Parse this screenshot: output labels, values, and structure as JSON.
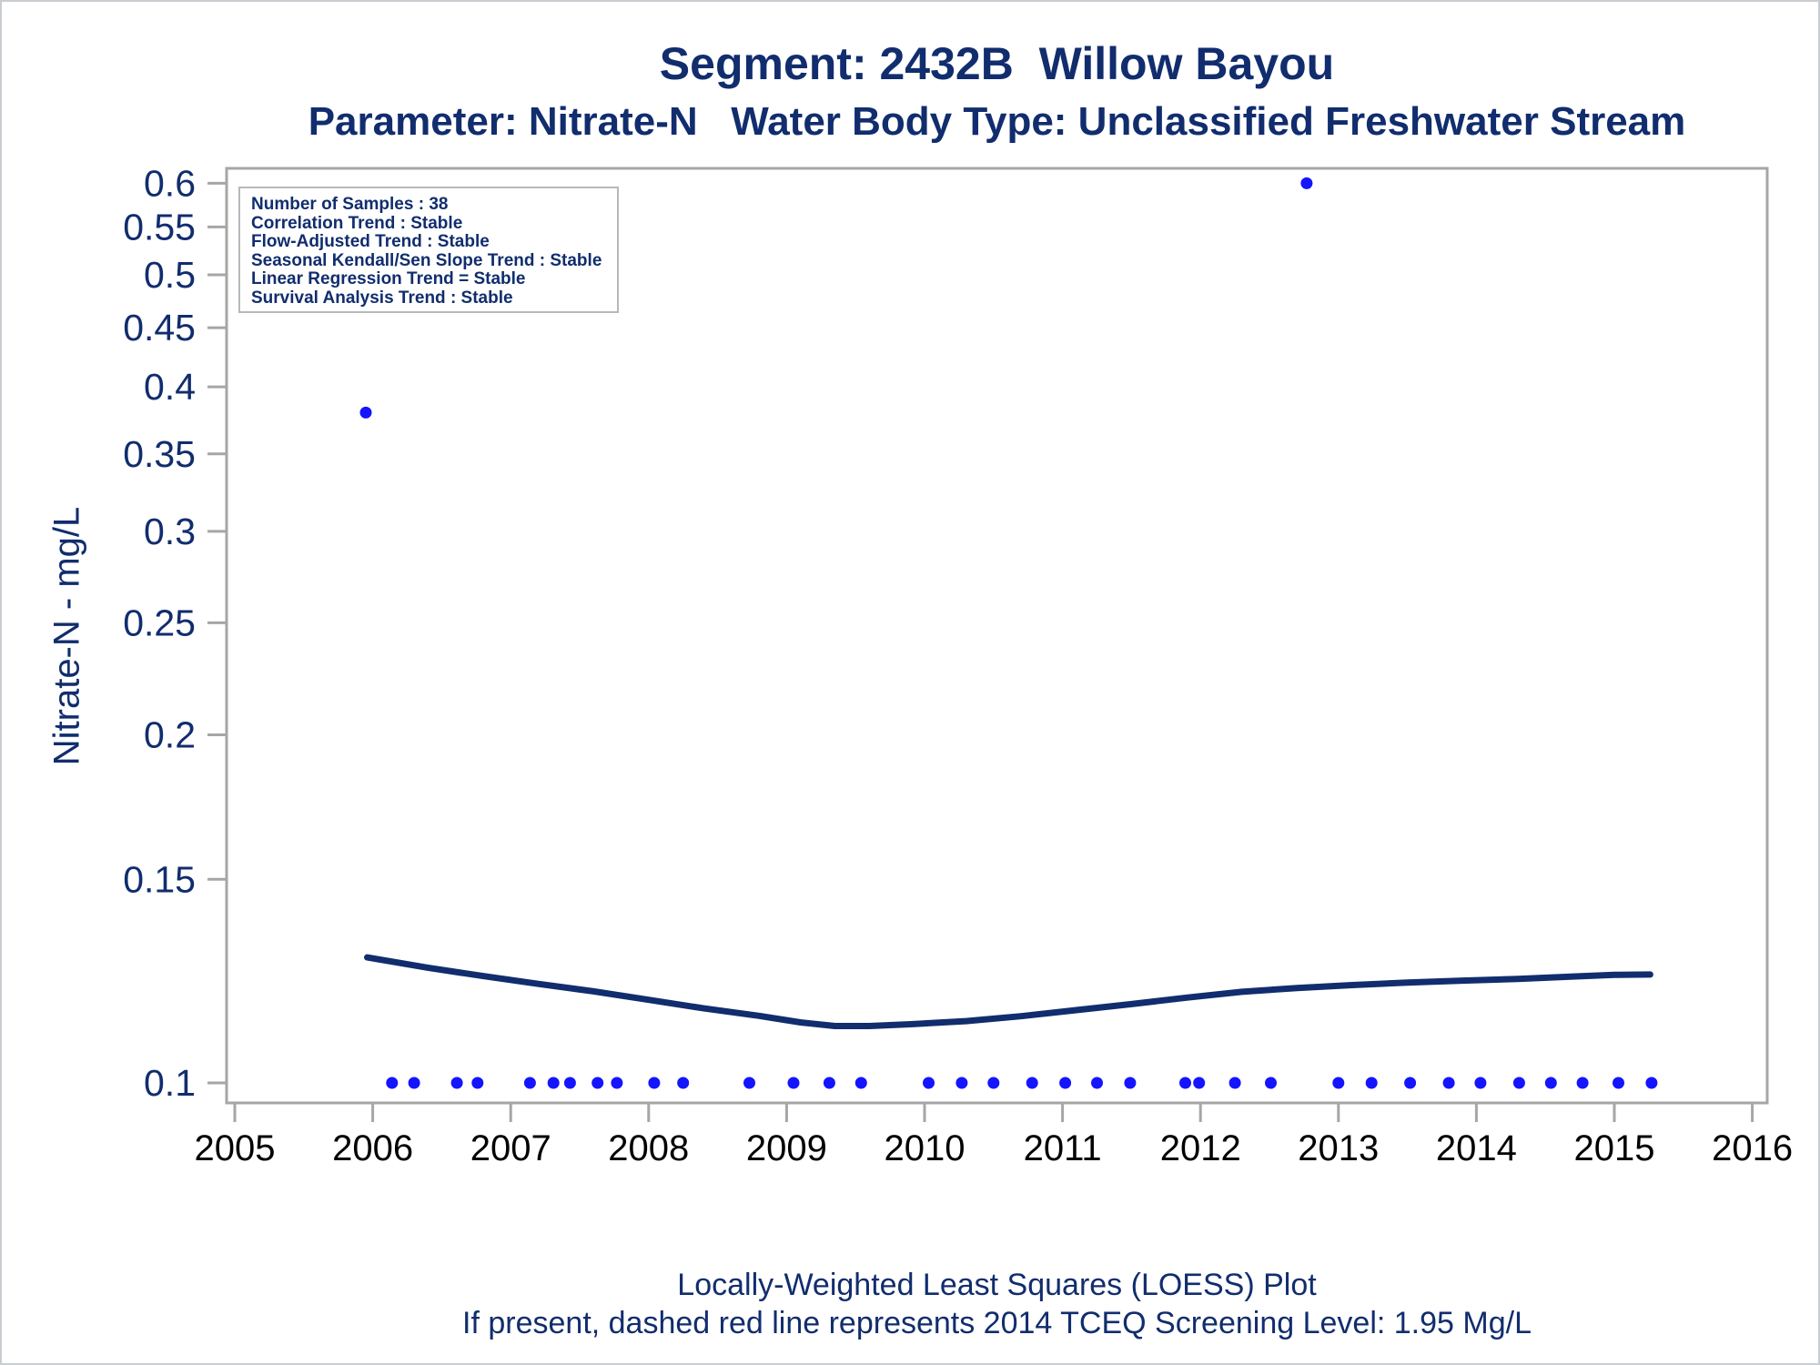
{
  "header": {
    "title": "Segment: 2432B  Willow Bayou",
    "subtitle": "Parameter: Nitrate-N   Water Body Type: Unclassified Freshwater Stream"
  },
  "inset": {
    "lines": [
      "Number of Samples : 38",
      "Correlation Trend : Stable",
      "Flow-Adjusted Trend : Stable",
      "Seasonal Kendall/Sen Slope Trend : Stable",
      "Linear Regression Trend = Stable",
      "Survival Analysis Trend : Stable"
    ]
  },
  "footnotes": [
    "Locally-Weighted Least Squares (LOESS) Plot",
    "If present, dashed red line represents 2014 TCEQ Screening Level: 1.95 Mg/L"
  ],
  "chart_data": {
    "type": "scatter",
    "title": "Segment: 2432B  Willow Bayou",
    "subtitle": "Parameter: Nitrate-N   Water Body Type: Unclassified Freshwater Stream",
    "xlabel": "",
    "ylabel": "Nitrate-N - mg/L",
    "x_scale": "linear",
    "y_scale": "log",
    "xlim": [
      2004.94,
      2016.11
    ],
    "ylim": [
      0.096,
      0.618
    ],
    "x_ticks": [
      2005,
      2006,
      2007,
      2008,
      2009,
      2010,
      2011,
      2012,
      2013,
      2014,
      2015,
      2016
    ],
    "y_ticks": [
      0.1,
      0.15,
      0.2,
      0.25,
      0.3,
      0.35,
      0.4,
      0.45,
      0.5,
      0.55,
      0.6
    ],
    "grid": false,
    "legend": false,
    "colors": {
      "text_navy": "#112d6e",
      "point_blue": "#1414ff",
      "loess_navy": "#112d6e",
      "axis_gray": "#a6a6a6",
      "x_label_black": "#000000"
    },
    "series": [
      {
        "name": "samples",
        "type": "scatter",
        "color": "#1414ff",
        "points": [
          [
            2005.95,
            0.38
          ],
          [
            2012.77,
            0.6
          ],
          [
            2006.14,
            0.1
          ],
          [
            2006.3,
            0.1
          ],
          [
            2006.61,
            0.1
          ],
          [
            2006.76,
            0.1
          ],
          [
            2007.14,
            0.1
          ],
          [
            2007.31,
            0.1
          ],
          [
            2007.43,
            0.1
          ],
          [
            2007.63,
            0.1
          ],
          [
            2007.77,
            0.1
          ],
          [
            2008.04,
            0.1
          ],
          [
            2008.25,
            0.1
          ],
          [
            2008.73,
            0.1
          ],
          [
            2009.05,
            0.1
          ],
          [
            2009.31,
            0.1
          ],
          [
            2009.54,
            0.1
          ],
          [
            2010.03,
            0.1
          ],
          [
            2010.27,
            0.1
          ],
          [
            2010.5,
            0.1
          ],
          [
            2010.78,
            0.1
          ],
          [
            2011.02,
            0.1
          ],
          [
            2011.25,
            0.1
          ],
          [
            2011.49,
            0.1
          ],
          [
            2011.89,
            0.1
          ],
          [
            2011.99,
            0.1
          ],
          [
            2012.25,
            0.1
          ],
          [
            2012.51,
            0.1
          ],
          [
            2013.0,
            0.1
          ],
          [
            2013.24,
            0.1
          ],
          [
            2013.52,
            0.1
          ],
          [
            2013.8,
            0.1
          ],
          [
            2014.03,
            0.1
          ],
          [
            2014.31,
            0.1
          ],
          [
            2014.54,
            0.1
          ],
          [
            2014.77,
            0.1
          ],
          [
            2015.03,
            0.1
          ],
          [
            2015.27,
            0.1
          ]
        ]
      },
      {
        "name": "loess",
        "type": "line",
        "color": "#112d6e",
        "points": [
          [
            2005.96,
            0.1284
          ],
          [
            2006.4,
            0.1258
          ],
          [
            2006.8,
            0.1237
          ],
          [
            2007.2,
            0.1218
          ],
          [
            2007.6,
            0.12
          ],
          [
            2008.0,
            0.118
          ],
          [
            2008.4,
            0.116
          ],
          [
            2008.8,
            0.1143
          ],
          [
            2009.1,
            0.1128
          ],
          [
            2009.35,
            0.112
          ],
          [
            2009.6,
            0.112
          ],
          [
            2009.9,
            0.1124
          ],
          [
            2010.3,
            0.1131
          ],
          [
            2010.7,
            0.1142
          ],
          [
            2011.1,
            0.1156
          ],
          [
            2011.5,
            0.117
          ],
          [
            2011.9,
            0.1185
          ],
          [
            2012.3,
            0.1199
          ],
          [
            2012.7,
            0.1208
          ],
          [
            2013.1,
            0.1215
          ],
          [
            2013.5,
            0.1221
          ],
          [
            2013.9,
            0.1226
          ],
          [
            2014.3,
            0.123
          ],
          [
            2014.7,
            0.1236
          ],
          [
            2015.0,
            0.124
          ],
          [
            2015.26,
            0.1241
          ]
        ]
      }
    ]
  }
}
